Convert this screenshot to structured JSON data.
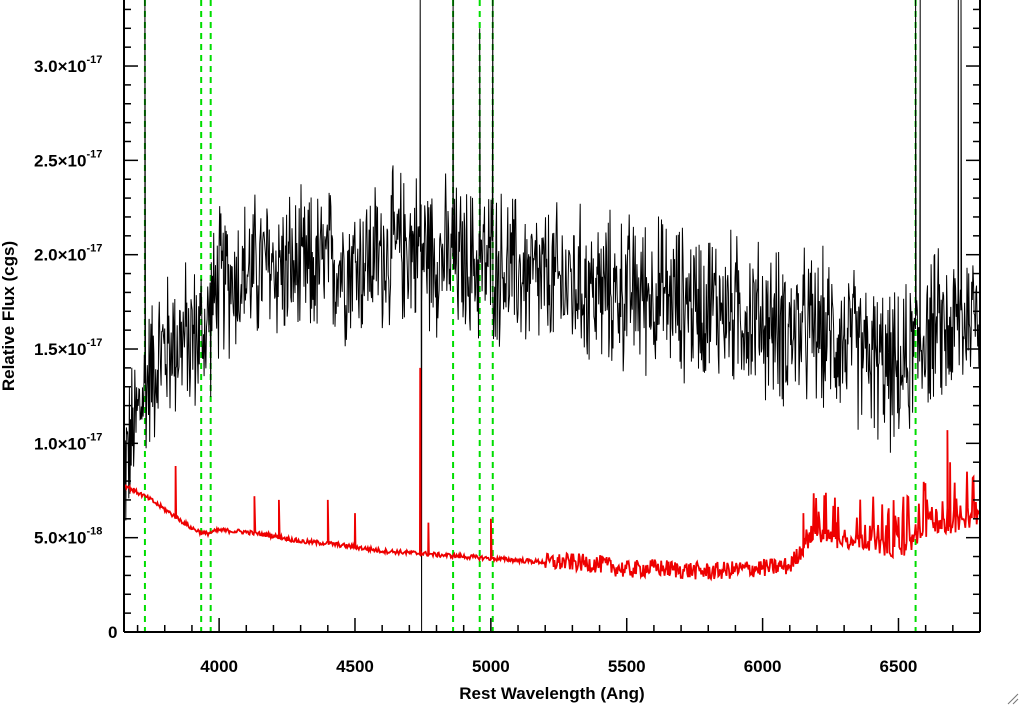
{
  "chart_data": {
    "type": "line",
    "title": "",
    "xlabel": "Rest Wavelength (Ang)",
    "ylabel": "Relative Flux (cgs)",
    "xlim": [
      3650,
      6800
    ],
    "ylim": [
      0,
      3.35e-17
    ],
    "x_ticks": [
      {
        "value": 4000,
        "label": "4000"
      },
      {
        "value": 4500,
        "label": "4500"
      },
      {
        "value": 5000,
        "label": "5000"
      },
      {
        "value": 5500,
        "label": "5500"
      },
      {
        "value": 6000,
        "label": "6000"
      },
      {
        "value": 6500,
        "label": "6500"
      }
    ],
    "y_ticks": [
      {
        "value": 0,
        "mantissa": "0",
        "exponent": ""
      },
      {
        "value": 5e-18,
        "mantissa": "5.0×10",
        "exponent": "-18"
      },
      {
        "value": 1e-17,
        "mantissa": "1.0×10",
        "exponent": "-17"
      },
      {
        "value": 1.5e-17,
        "mantissa": "1.5×10",
        "exponent": "-17"
      },
      {
        "value": 2e-17,
        "mantissa": "2.0×10",
        "exponent": "-17"
      },
      {
        "value": 2.5e-17,
        "mantissa": "2.5×10",
        "exponent": "-17"
      },
      {
        "value": 3e-17,
        "mantissa": "3.0×10",
        "exponent": "-17"
      }
    ],
    "grid": false,
    "legend": "none",
    "reference_lines": [
      {
        "x": 3727,
        "color": "#00dd00",
        "style": "dashed"
      },
      {
        "x": 3934,
        "color": "#00dd00",
        "style": "dashed"
      },
      {
        "x": 3969,
        "color": "#00dd00",
        "style": "dashed"
      },
      {
        "x": 4861,
        "color": "#00dd00",
        "style": "dashed"
      },
      {
        "x": 4959,
        "color": "#00dd00",
        "style": "dashed"
      },
      {
        "x": 5007,
        "color": "#00dd00",
        "style": "dashed"
      },
      {
        "x": 6563,
        "color": "#00dd00",
        "style": "dashed"
      }
    ],
    "series": [
      {
        "color": "#000000",
        "style": "noisy",
        "x": [
          3650,
          3700,
          3750,
          3800,
          3850,
          3900,
          3950,
          4000,
          4100,
          4200,
          4300,
          4400,
          4500,
          4600,
          4700,
          4800,
          4900,
          5000,
          5100,
          5200,
          5300,
          5400,
          5500,
          5600,
          5700,
          5800,
          5900,
          6000,
          6100,
          6200,
          6300,
          6400,
          6500,
          6600,
          6700,
          6800
        ],
        "y": [
          8.5e-18,
          1.15e-17,
          1.4e-17,
          1.5e-17,
          1.55e-17,
          1.55e-17,
          1.6e-17,
          1.85e-17,
          1.9e-17,
          1.95e-17,
          1.9e-17,
          1.95e-17,
          1.95e-17,
          2e-17,
          2.05e-17,
          2e-17,
          1.95e-17,
          1.95e-17,
          1.9e-17,
          1.85e-17,
          1.85e-17,
          1.8e-17,
          1.8e-17,
          1.8e-17,
          1.75e-17,
          1.75e-17,
          1.7e-17,
          1.65e-17,
          1.6e-17,
          1.6e-17,
          1.55e-17,
          1.45e-17,
          1.35e-17,
          1.6e-17,
          1.6e-17,
          1.75e-17
        ],
        "noise": 3.3e-18,
        "spikes": [
          {
            "x": 3727,
            "y": 3.4e-17
          },
          {
            "x": 4740,
            "y": 3.4e-17
          },
          {
            "x": 4745,
            "y": 0.0
          },
          {
            "x": 4861,
            "y": 3.4e-17
          },
          {
            "x": 4959,
            "y": 3.2e-17
          },
          {
            "x": 5007,
            "y": 3.4e-17
          },
          {
            "x": 6563,
            "y": 3.4e-17
          },
          {
            "x": 6580,
            "y": 3.4e-17
          },
          {
            "x": 6720,
            "y": 3.4e-17
          },
          {
            "x": 6730,
            "y": 3.4e-17
          }
        ]
      },
      {
        "color": "#ee0000",
        "style": "smooth",
        "x": [
          3650,
          3700,
          3750,
          3800,
          3850,
          3900,
          3950,
          4000,
          4100,
          4200,
          4300,
          4400,
          4500,
          4600,
          4700,
          4800,
          4900,
          5000,
          5100,
          5200,
          5300,
          5400,
          5500,
          5600,
          5700,
          5800,
          5900,
          6000,
          6100,
          6150,
          6200,
          6300,
          6400,
          6500,
          6600,
          6700,
          6800
        ],
        "y": [
          7.8e-18,
          7.4e-18,
          7e-18,
          6.5e-18,
          6e-18,
          5.5e-18,
          5.2e-18,
          5.4e-18,
          5.3e-18,
          5.1e-18,
          4.8e-18,
          4.7e-18,
          4.5e-18,
          4.3e-18,
          4.2e-18,
          4.1e-18,
          4e-18,
          3.9e-18,
          3.8e-18,
          3.7e-18,
          3.7e-18,
          3.6e-18,
          3.3e-18,
          3.4e-18,
          3.3e-18,
          3.2e-18,
          3.3e-18,
          3.4e-18,
          3.5e-18,
          4.5e-18,
          5.2e-18,
          4.7e-18,
          4.8e-18,
          4.2e-18,
          5.5e-18,
          5.6e-18,
          6e-18
        ],
        "noise": 6e-19,
        "spikes": [
          {
            "x": 3840,
            "y": 8.8e-18
          },
          {
            "x": 4130,
            "y": 7.2e-18
          },
          {
            "x": 4220,
            "y": 7e-18
          },
          {
            "x": 4400,
            "y": 7e-18
          },
          {
            "x": 4500,
            "y": 6.3e-18
          },
          {
            "x": 4740,
            "y": 1.4e-17
          },
          {
            "x": 4770,
            "y": 5.8e-18
          },
          {
            "x": 5000,
            "y": 6e-18
          },
          {
            "x": 6150,
            "y": 6.3e-18
          },
          {
            "x": 6680,
            "y": 1.07e-17
          },
          {
            "x": 6690,
            "y": 9e-18
          }
        ]
      }
    ]
  }
}
